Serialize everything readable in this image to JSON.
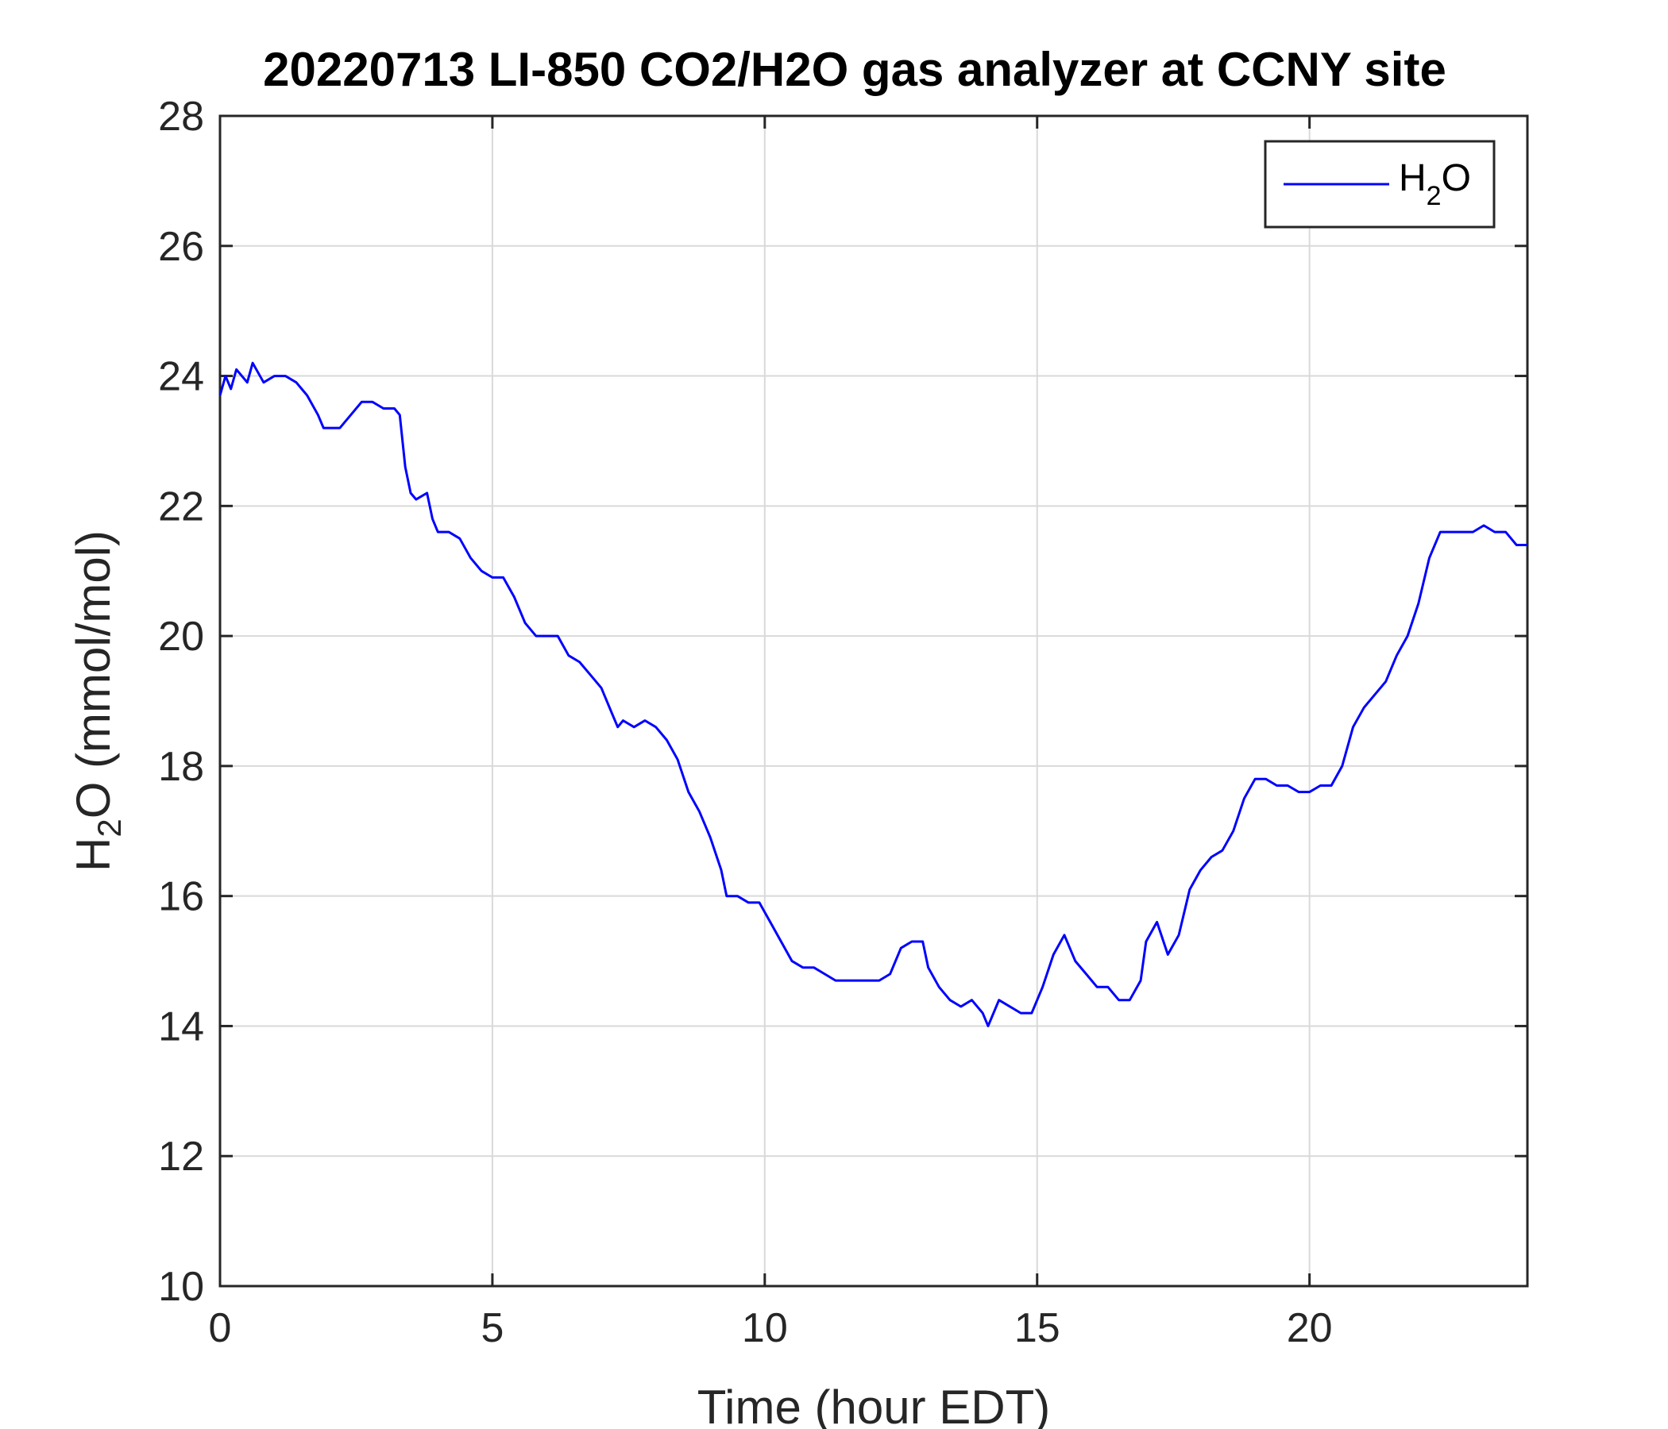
{
  "chart_data": {
    "type": "line",
    "title": "20220713 LI-850 CO2/H2O gas analyzer at CCNY site",
    "xlabel": "Time (hour EDT)",
    "ylabel": {
      "main": "H",
      "sub": "2",
      "rest": "O (mmol/mol)"
    },
    "xlim": [
      0,
      24
    ],
    "ylim": [
      10,
      28
    ],
    "xticks": [
      0,
      5,
      10,
      15,
      20
    ],
    "xtick_labels": [
      "0",
      "5",
      "10",
      "15",
      "20"
    ],
    "yticks": [
      10,
      12,
      14,
      16,
      18,
      20,
      22,
      24,
      26,
      28
    ],
    "ytick_labels": [
      "10",
      "12",
      "14",
      "16",
      "18",
      "20",
      "22",
      "24",
      "26",
      "28"
    ],
    "grid": true,
    "legend": {
      "placement": "top-right",
      "main": "H",
      "sub": "2",
      "rest": "O"
    },
    "colors": {
      "series": "#0000ff",
      "grid": "#d9d9d9",
      "axis": "#262626"
    },
    "series": [
      {
        "name": "H2O",
        "x": [
          0,
          0.1,
          0.2,
          0.3,
          0.5,
          0.6,
          0.8,
          1.0,
          1.2,
          1.4,
          1.6,
          1.8,
          1.9,
          2.0,
          2.2,
          2.4,
          2.6,
          2.8,
          3.0,
          3.2,
          3.3,
          3.4,
          3.5,
          3.6,
          3.8,
          3.9,
          4.0,
          4.2,
          4.4,
          4.6,
          4.8,
          5.0,
          5.2,
          5.4,
          5.6,
          5.8,
          6.0,
          6.2,
          6.4,
          6.6,
          6.8,
          7.0,
          7.2,
          7.3,
          7.4,
          7.6,
          7.8,
          8.0,
          8.2,
          8.4,
          8.6,
          8.8,
          9.0,
          9.2,
          9.3,
          9.5,
          9.7,
          9.9,
          10.1,
          10.3,
          10.5,
          10.7,
          10.9,
          11.1,
          11.3,
          11.5,
          11.7,
          11.9,
          12.1,
          12.3,
          12.5,
          12.7,
          12.9,
          13.0,
          13.2,
          13.4,
          13.6,
          13.8,
          14.0,
          14.1,
          14.3,
          14.5,
          14.7,
          14.9,
          15.1,
          15.3,
          15.5,
          15.7,
          15.9,
          16.1,
          16.3,
          16.5,
          16.7,
          16.9,
          17.0,
          17.2,
          17.4,
          17.6,
          17.8,
          18.0,
          18.2,
          18.4,
          18.6,
          18.8,
          19.0,
          19.2,
          19.4,
          19.6,
          19.8,
          20.0,
          20.2,
          20.4,
          20.6,
          20.8,
          21.0,
          21.2,
          21.4,
          21.6,
          21.8,
          22.0,
          22.2,
          22.4,
          22.6,
          22.8,
          23.0,
          23.2,
          23.4,
          23.6,
          23.8,
          24.0
        ],
        "y": [
          23.7,
          24.0,
          23.8,
          24.1,
          23.9,
          24.2,
          23.9,
          24.0,
          24.0,
          23.9,
          23.7,
          23.4,
          23.2,
          23.2,
          23.2,
          23.4,
          23.6,
          23.6,
          23.5,
          23.5,
          23.4,
          22.6,
          22.2,
          22.1,
          22.2,
          21.8,
          21.6,
          21.6,
          21.5,
          21.2,
          21.0,
          20.9,
          20.9,
          20.6,
          20.2,
          20.0,
          20.0,
          20.0,
          19.7,
          19.6,
          19.4,
          19.2,
          18.8,
          18.6,
          18.7,
          18.6,
          18.7,
          18.6,
          18.4,
          18.1,
          17.6,
          17.3,
          16.9,
          16.4,
          16.0,
          16.0,
          15.9,
          15.9,
          15.6,
          15.3,
          15.0,
          14.9,
          14.9,
          14.8,
          14.7,
          14.7,
          14.7,
          14.7,
          14.7,
          14.8,
          15.2,
          15.3,
          15.3,
          14.9,
          14.6,
          14.4,
          14.3,
          14.4,
          14.2,
          14.0,
          14.4,
          14.3,
          14.2,
          14.2,
          14.6,
          15.1,
          15.4,
          15.0,
          14.8,
          14.6,
          14.6,
          14.4,
          14.4,
          14.7,
          15.3,
          15.6,
          15.1,
          15.4,
          16.1,
          16.4,
          16.6,
          16.7,
          17.0,
          17.5,
          17.8,
          17.8,
          17.7,
          17.7,
          17.6,
          17.6,
          17.7,
          17.7,
          18.0,
          18.6,
          18.9,
          19.1,
          19.3,
          19.7,
          20.0,
          20.5,
          21.2,
          21.6,
          21.6,
          21.6,
          21.6,
          21.7,
          21.6,
          21.6,
          21.4,
          21.4
        ]
      }
    ]
  }
}
